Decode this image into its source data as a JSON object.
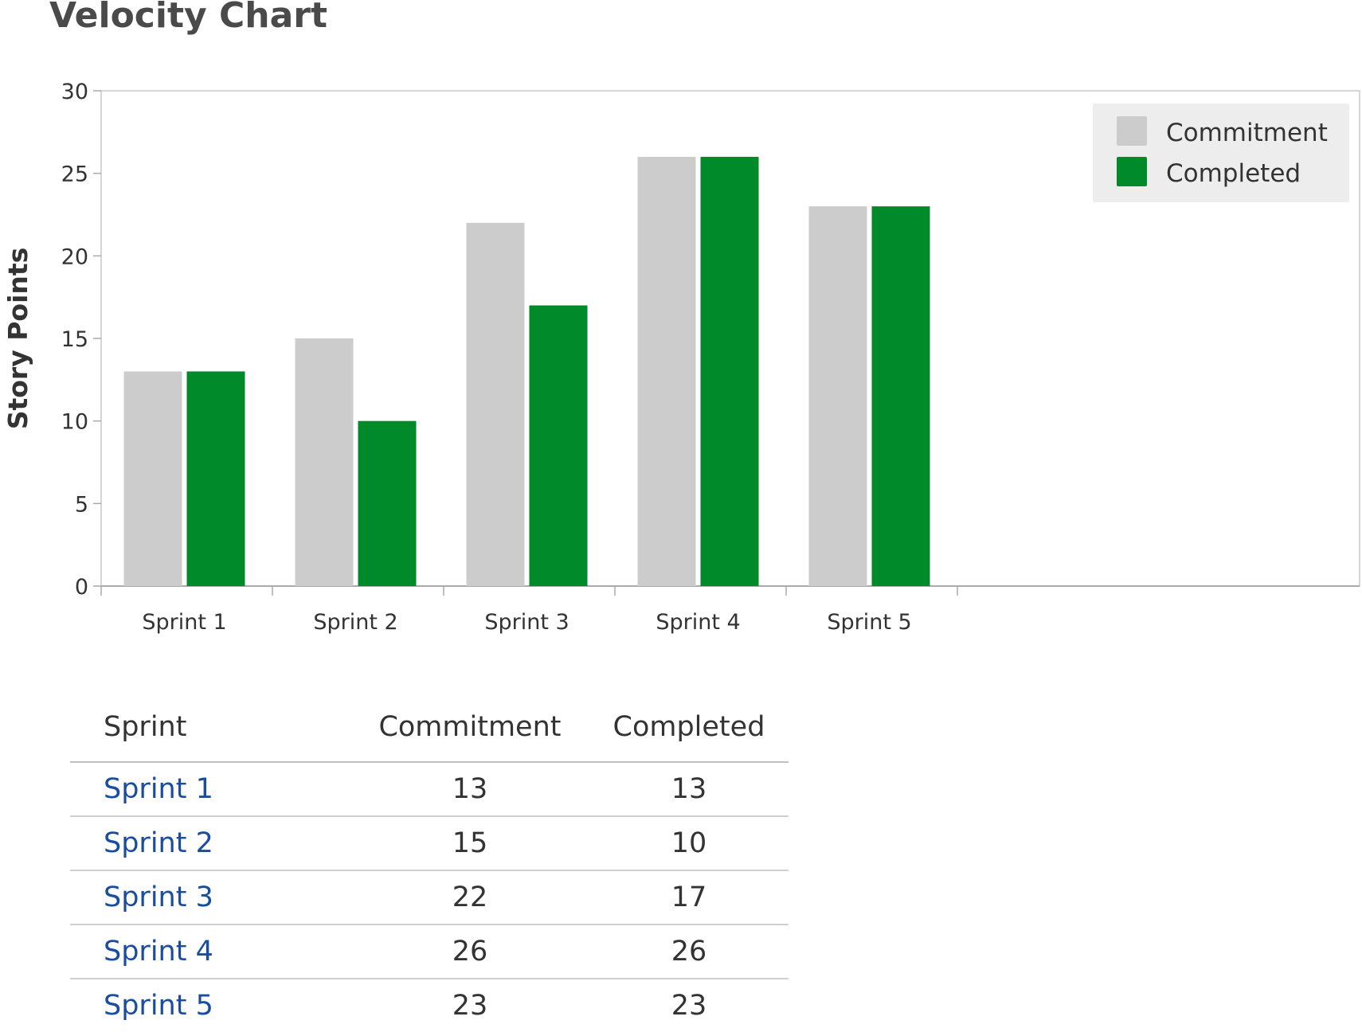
{
  "page": {
    "title": "Velocity Chart"
  },
  "chart_data": {
    "type": "bar",
    "title": "Velocity Chart",
    "xlabel": "",
    "ylabel": "Story Points",
    "categories": [
      "Sprint 1",
      "Sprint 2",
      "Sprint 3",
      "Sprint 4",
      "Sprint 5"
    ],
    "series": [
      {
        "name": "Commitment",
        "color": "#cccccc",
        "values": [
          13,
          15,
          22,
          26,
          23
        ]
      },
      {
        "name": "Completed",
        "color": "#008a2a",
        "values": [
          13,
          10,
          17,
          26,
          23
        ]
      }
    ],
    "ylim": [
      0,
      30
    ],
    "yticks": [
      0,
      5,
      10,
      15,
      20,
      25,
      30
    ],
    "grid": false,
    "legend_placement": "top-right"
  },
  "table": {
    "headers": [
      "Sprint",
      "Commitment",
      "Completed"
    ],
    "rows": [
      {
        "sprint": "Sprint 1",
        "commitment": "13",
        "completed": "13"
      },
      {
        "sprint": "Sprint 2",
        "commitment": "15",
        "completed": "10"
      },
      {
        "sprint": "Sprint 3",
        "commitment": "22",
        "completed": "17"
      },
      {
        "sprint": "Sprint 4",
        "commitment": "26",
        "completed": "26"
      },
      {
        "sprint": "Sprint 5",
        "commitment": "23",
        "completed": "23"
      }
    ]
  }
}
